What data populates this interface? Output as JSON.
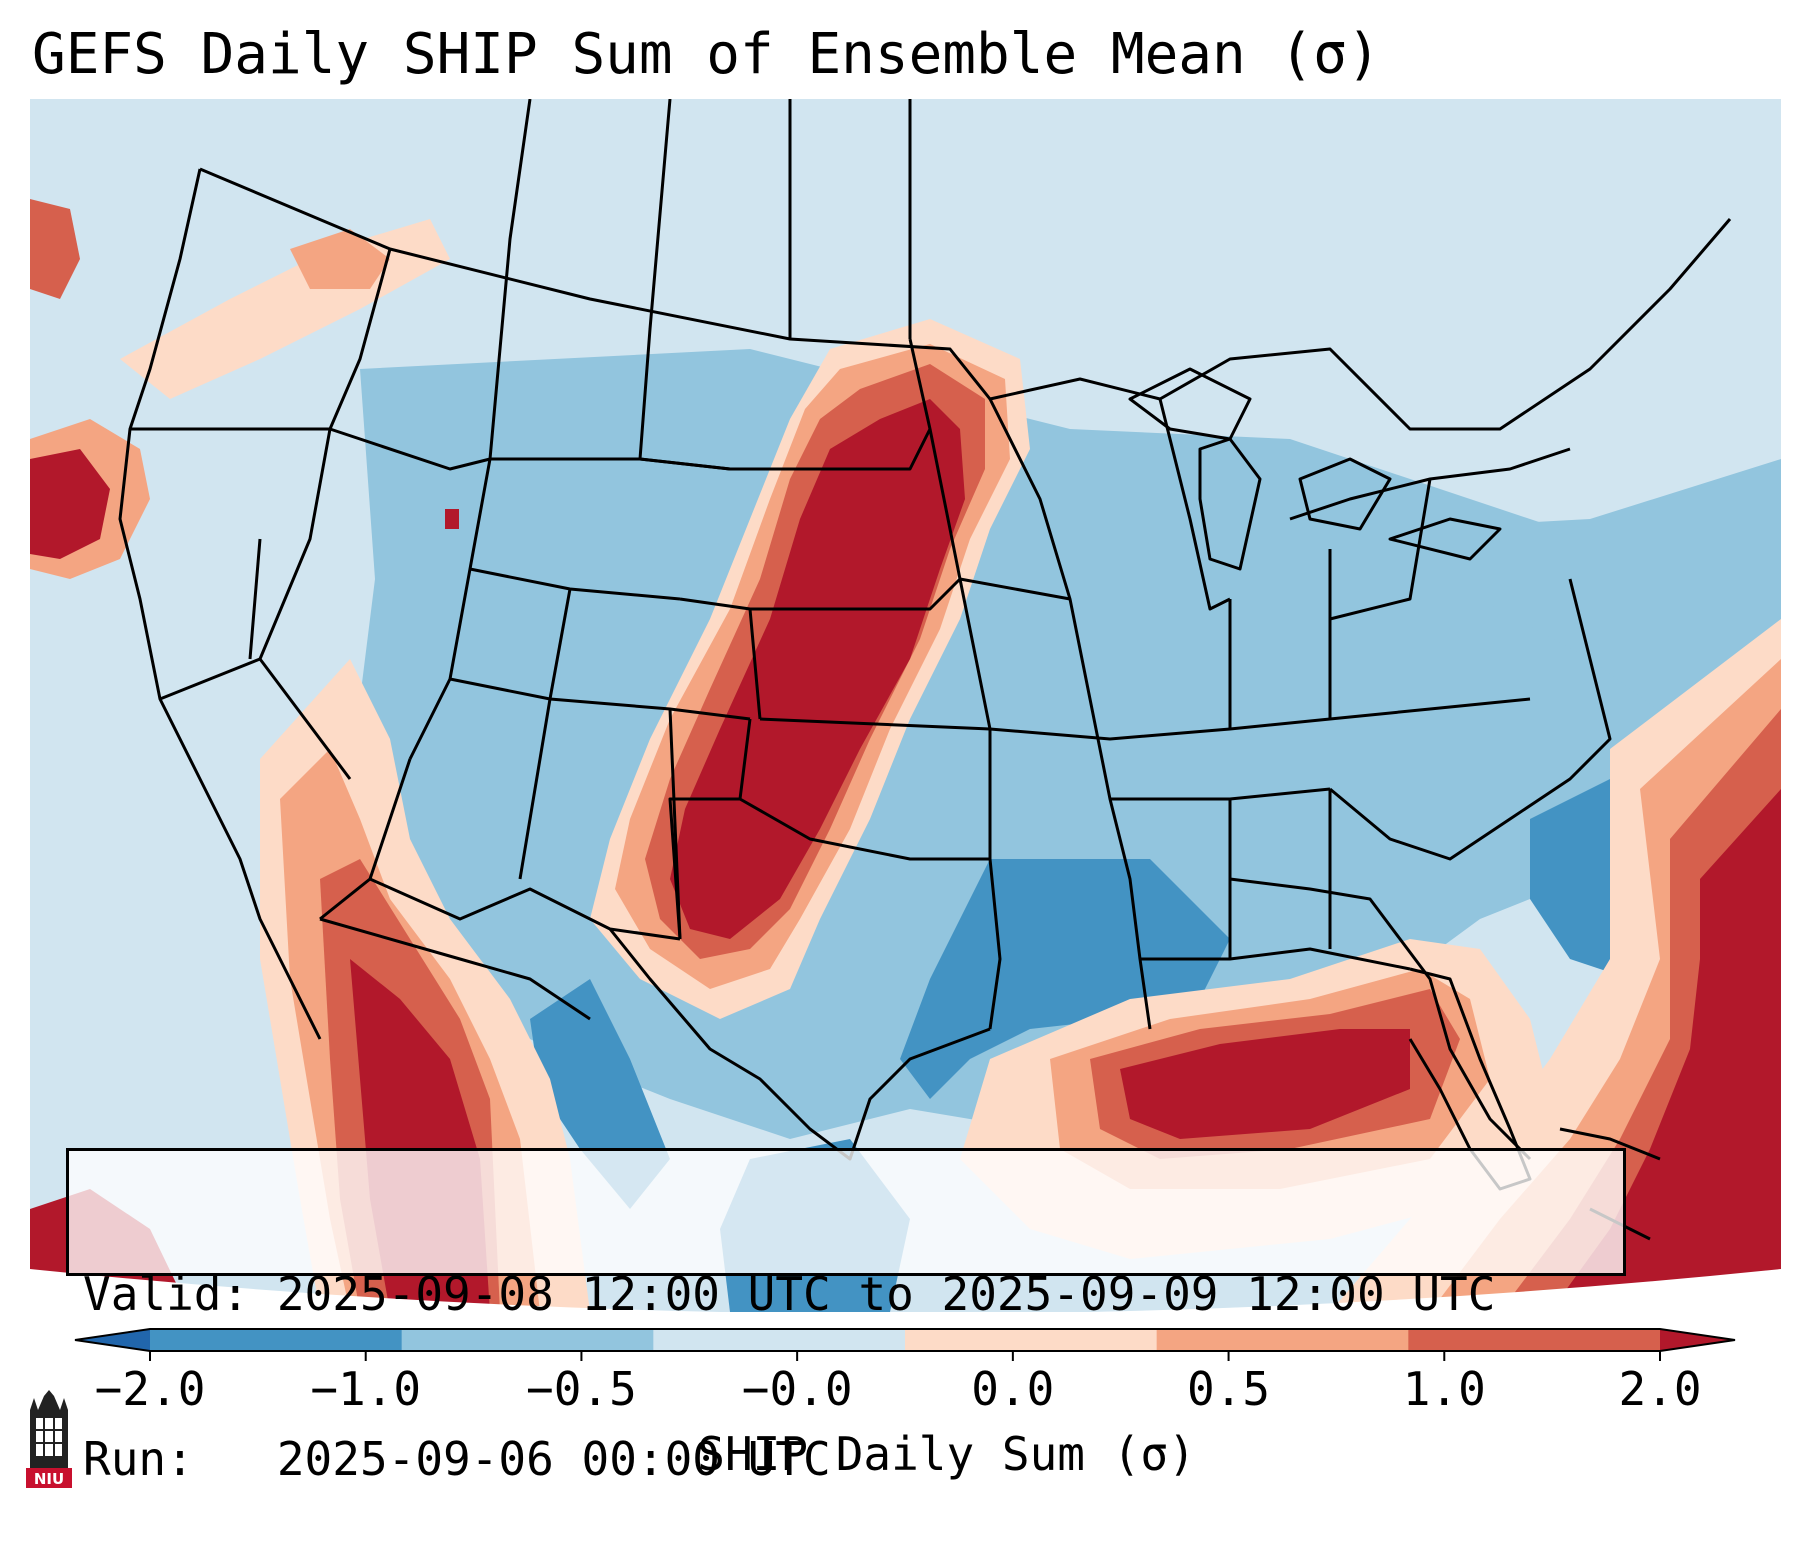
{
  "title": "GEFS Daily SHIP Sum of Ensemble Mean (σ)",
  "info": {
    "valid_line": "Valid: 2025-09-08 12:00 UTC to 2025-09-09 12:00 UTC",
    "run_line": "Run:   2025-09-06 00:00 UTC"
  },
  "colorbar": {
    "label": "SHIP Daily Sum (σ)",
    "ticks": [
      "−2.0",
      "−1.0",
      "−0.5",
      "−0.0",
      "0.0",
      "0.5",
      "1.0",
      "2.0"
    ],
    "colors": [
      "#2166ac",
      "#4393c3",
      "#92c5de",
      "#d1e5f0",
      "#fddbc7",
      "#f4a582",
      "#d6604d",
      "#b2182b"
    ],
    "extend": "both"
  },
  "legend_colors": {
    "lt_neg2": "#2166ac",
    "neg2_neg1": "#4393c3",
    "neg1_neg05": "#92c5de",
    "neg05_0": "#d1e5f0",
    "0_05": "#fddbc7",
    "05_1": "#f4a582",
    "1_2": "#d6604d",
    "gt_2": "#b2182b"
  },
  "logo": {
    "text": "NIU",
    "icon": "niu-logo-icon"
  },
  "map": {
    "region": "Continental United States",
    "icons": [
      "state-boundaries",
      "coastlines",
      "country-borders"
    ]
  }
}
